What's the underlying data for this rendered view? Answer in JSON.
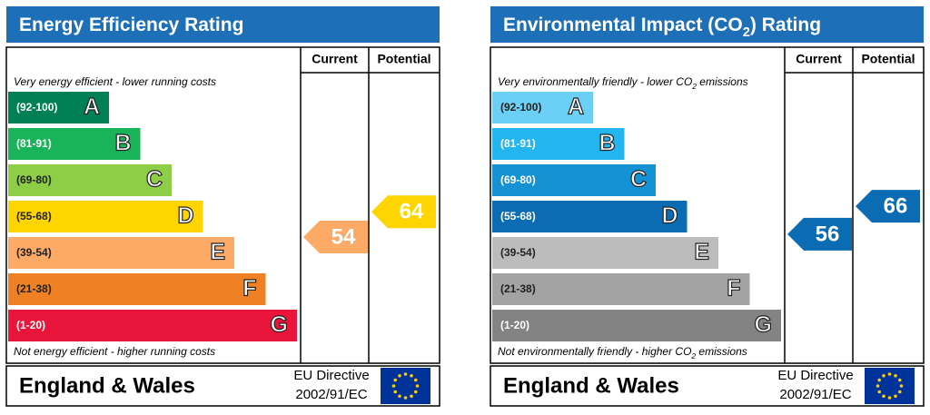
{
  "panels": [
    {
      "title": [
        "Energy Efficiency Rating"
      ],
      "columns": [
        "Current",
        "Potential"
      ],
      "top_note": [
        "Very energy efficient - lower running costs"
      ],
      "bottom_note": [
        "Not energy efficient - higher running costs"
      ],
      "bands": [
        {
          "range": "(92-100)",
          "letter": "A",
          "color": "#008054"
        },
        {
          "range": "(81-91)",
          "letter": "B",
          "color": "#19b459"
        },
        {
          "range": "(69-80)",
          "letter": "C",
          "color": "#8dce46"
        },
        {
          "range": "(55-68)",
          "letter": "D",
          "color": "#ffd500"
        },
        {
          "range": "(39-54)",
          "letter": "E",
          "color": "#fcaa65"
        },
        {
          "range": "(21-38)",
          "letter": "F",
          "color": "#ef8023"
        },
        {
          "range": "(1-20)",
          "letter": "G",
          "color": "#e9153b"
        }
      ],
      "current": 54,
      "potential": 64,
      "footer": {
        "region": "England & Wales",
        "directive": "EU Directive",
        "code": "2002/91/EC"
      }
    },
    {
      "title": [
        "Environmental Impact (CO",
        "2",
        ") Rating"
      ],
      "columns": [
        "Current",
        "Potential"
      ],
      "top_note": [
        "Very environmentally friendly - lower CO",
        "2",
        " emissions"
      ],
      "bottom_note": [
        "Not environmentally friendly - higher CO",
        "2",
        " emissions"
      ],
      "bands": [
        {
          "range": "(92-100)",
          "letter": "A",
          "color": "#6ccff6"
        },
        {
          "range": "(81-91)",
          "letter": "B",
          "color": "#22b5ef"
        },
        {
          "range": "(69-80)",
          "letter": "C",
          "color": "#1592d4"
        },
        {
          "range": "(55-68)",
          "letter": "D",
          "color": "#0b6cb4"
        },
        {
          "range": "(39-54)",
          "letter": "E",
          "color": "#bcbcbc"
        },
        {
          "range": "(21-38)",
          "letter": "F",
          "color": "#a3a3a3"
        },
        {
          "range": "(1-20)",
          "letter": "G",
          "color": "#838383"
        }
      ],
      "current": 56,
      "potential": 66,
      "footer": {
        "region": "England & Wales",
        "directive": "EU Directive",
        "code": "2002/91/EC"
      }
    }
  ]
}
